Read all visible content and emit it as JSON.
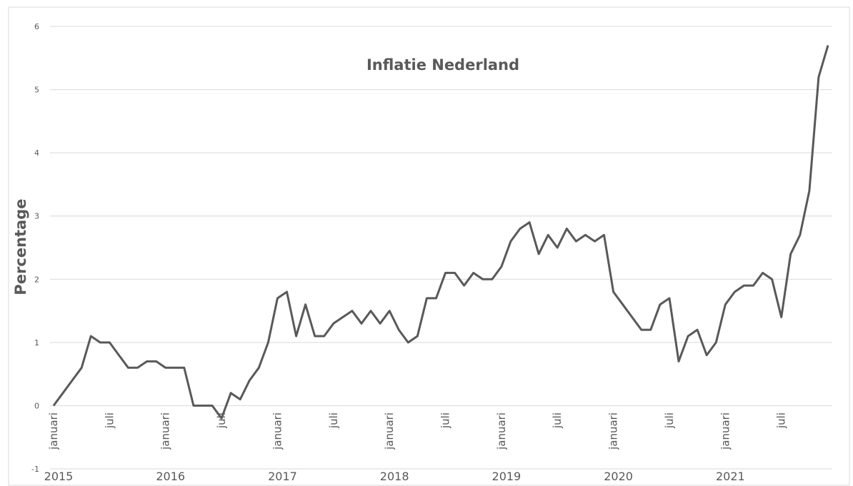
{
  "chart_data": {
    "type": "line",
    "title": "Inflatie Nederland",
    "y_label": "Percentage",
    "categories": [
      "januari",
      null,
      null,
      null,
      null,
      null,
      "juli",
      null,
      null,
      null,
      null,
      null,
      "januari",
      null,
      null,
      null,
      null,
      null,
      "juli",
      null,
      null,
      null,
      null,
      null,
      "januari",
      null,
      null,
      null,
      null,
      null,
      "juli",
      null,
      null,
      null,
      null,
      null,
      "januari",
      null,
      null,
      null,
      null,
      null,
      "juli",
      null,
      null,
      null,
      null,
      null,
      "januari",
      null,
      null,
      null,
      null,
      null,
      "juli",
      null,
      null,
      null,
      null,
      null,
      "januari",
      null,
      null,
      null,
      null,
      null,
      "juli",
      null,
      null,
      null,
      null,
      null,
      "januari",
      null,
      null,
      null,
      null,
      null,
      "juli",
      null,
      null,
      null,
      null,
      null
    ],
    "category_groups": [
      "2015",
      "2016",
      "2017",
      "2018",
      "2019",
      "2020",
      "2021"
    ],
    "series": [
      {
        "name": "Inflatie",
        "color": "#595959",
        "values": [
          0,
          0.2,
          0.4,
          0.6,
          1.1,
          1.0,
          1.0,
          0.8,
          0.6,
          0.6,
          0.7,
          0.7,
          0.6,
          0.6,
          0.6,
          0.0,
          0.0,
          0.0,
          -0.2,
          0.2,
          0.1,
          0.4,
          0.6,
          1.0,
          1.7,
          1.8,
          1.1,
          1.6,
          1.1,
          1.1,
          1.3,
          1.4,
          1.5,
          1.3,
          1.5,
          1.3,
          1.5,
          1.2,
          1.0,
          1.1,
          1.7,
          1.7,
          2.1,
          2.1,
          1.9,
          2.1,
          2.0,
          2.0,
          2.2,
          2.6,
          2.8,
          2.9,
          2.4,
          2.7,
          2.5,
          2.8,
          2.6,
          2.7,
          2.6,
          2.7,
          1.8,
          1.6,
          1.4,
          1.2,
          1.2,
          1.6,
          1.7,
          0.7,
          1.1,
          1.2,
          0.8,
          1.0,
          1.6,
          1.8,
          1.9,
          1.9,
          2.1,
          2.0,
          1.4,
          2.4,
          2.7,
          3.4,
          5.2,
          5.7
        ]
      }
    ],
    "ylim": [
      -1,
      6
    ],
    "yticks": [
      -1,
      0,
      1,
      2,
      3,
      4,
      5,
      6
    ],
    "grid": true
  }
}
